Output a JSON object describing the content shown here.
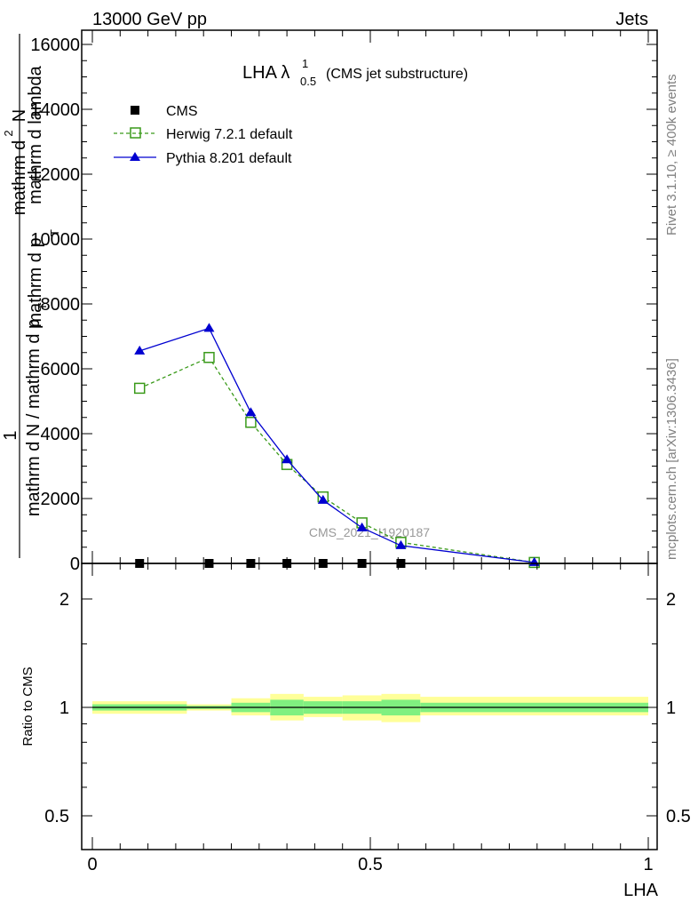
{
  "header": {
    "left": "13000 GeV pp",
    "right": "Jets"
  },
  "side_labels": {
    "rivet": "Rivet 3.1.10, ≥ 400k events",
    "mcplots": "mcplots.cern.ch [arXiv:1306.3436]"
  },
  "watermark": "CMS_2021_I1920187",
  "chart_data": [
    {
      "type": "line",
      "title_main": "LHA λ",
      "title_sub": "0.5",
      "title_sup": "1",
      "title_extra": "(CMS jet substructure)",
      "ylabel": "1 / mathrm d N / mathrm d p_T mathrm d^2N / mathrm d p_T mathrm d lambda",
      "ylabel_parts": {
        "one": "1",
        "num_a": "mathrm d",
        "num_sup": "2",
        "num_b": "N",
        "den_lines": [
          "mathrm d N / mathrm d p",
          "mathrm d p",
          "mathrm d lambda"
        ],
        "den_a": "mathrm d N / mathrm d p",
        "den_sub": "T",
        "den_b": "mathrm d p",
        "den_sub2": "T",
        "den_c": "mathrm d lambda"
      },
      "ylim": [
        0,
        16000
      ],
      "yticks": [
        0,
        2000,
        4000,
        6000,
        8000,
        10000,
        12000,
        14000,
        16000
      ],
      "ytick_labels": [
        "0",
        "2000",
        "4000",
        "6000",
        "8000",
        "10000",
        "12000",
        "14000",
        "16000"
      ],
      "xlim": [
        0,
        1
      ],
      "legend_position": "top-left",
      "series": [
        {
          "name": "CMS",
          "marker": "square",
          "color": "#000000",
          "x": [
            0.085,
            0.21,
            0.285,
            0.35,
            0.415,
            0.485,
            0.555,
            0.795
          ],
          "y": [
            0,
            0,
            0,
            0,
            0,
            0,
            0,
            0
          ]
        },
        {
          "name": "Herwig 7.2.1 default",
          "marker": "open-square",
          "color": "#3a9a1a",
          "dash": true,
          "x": [
            0.085,
            0.21,
            0.285,
            0.35,
            0.415,
            0.485,
            0.555,
            0.795
          ],
          "y": [
            5400,
            6350,
            4350,
            3050,
            2050,
            1250,
            650,
            30
          ]
        },
        {
          "name": "Pythia 8.201 default",
          "marker": "triangle",
          "color": "#0000d0",
          "dash": false,
          "x": [
            0.085,
            0.21,
            0.285,
            0.35,
            0.415,
            0.485,
            0.555,
            0.795
          ],
          "y": [
            6550,
            7250,
            4650,
            3200,
            1950,
            1100,
            550,
            30
          ]
        }
      ]
    },
    {
      "type": "area",
      "ylabel": "Ratio to CMS",
      "xlabel": "LHA",
      "ylim": [
        0.4,
        2.3
      ],
      "yscale": "log",
      "ytick_labels": [
        "0.5",
        "1",
        "2"
      ],
      "yticks": [
        0.5,
        1,
        2
      ],
      "xlim": [
        0,
        1
      ],
      "xticks": [
        0,
        0.5,
        1
      ],
      "xtick_labels": [
        "0",
        "0.5",
        "1"
      ],
      "reference": 1,
      "bands": {
        "bin_edges": [
          0,
          0.17,
          0.25,
          0.32,
          0.38,
          0.45,
          0.52,
          0.59,
          1.0
        ],
        "inner_low": [
          0.98,
          0.99,
          0.97,
          0.95,
          0.96,
          0.96,
          0.95,
          0.97
        ],
        "inner_high": [
          1.02,
          1.01,
          1.03,
          1.05,
          1.04,
          1.04,
          1.05,
          1.03
        ],
        "outer_low": [
          0.96,
          0.98,
          0.95,
          0.92,
          0.94,
          0.92,
          0.91,
          0.95
        ],
        "outer_high": [
          1.04,
          1.02,
          1.06,
          1.09,
          1.07,
          1.08,
          1.09,
          1.07
        ],
        "inner_color": "#80f080",
        "outer_color": "#ffff99"
      }
    }
  ]
}
